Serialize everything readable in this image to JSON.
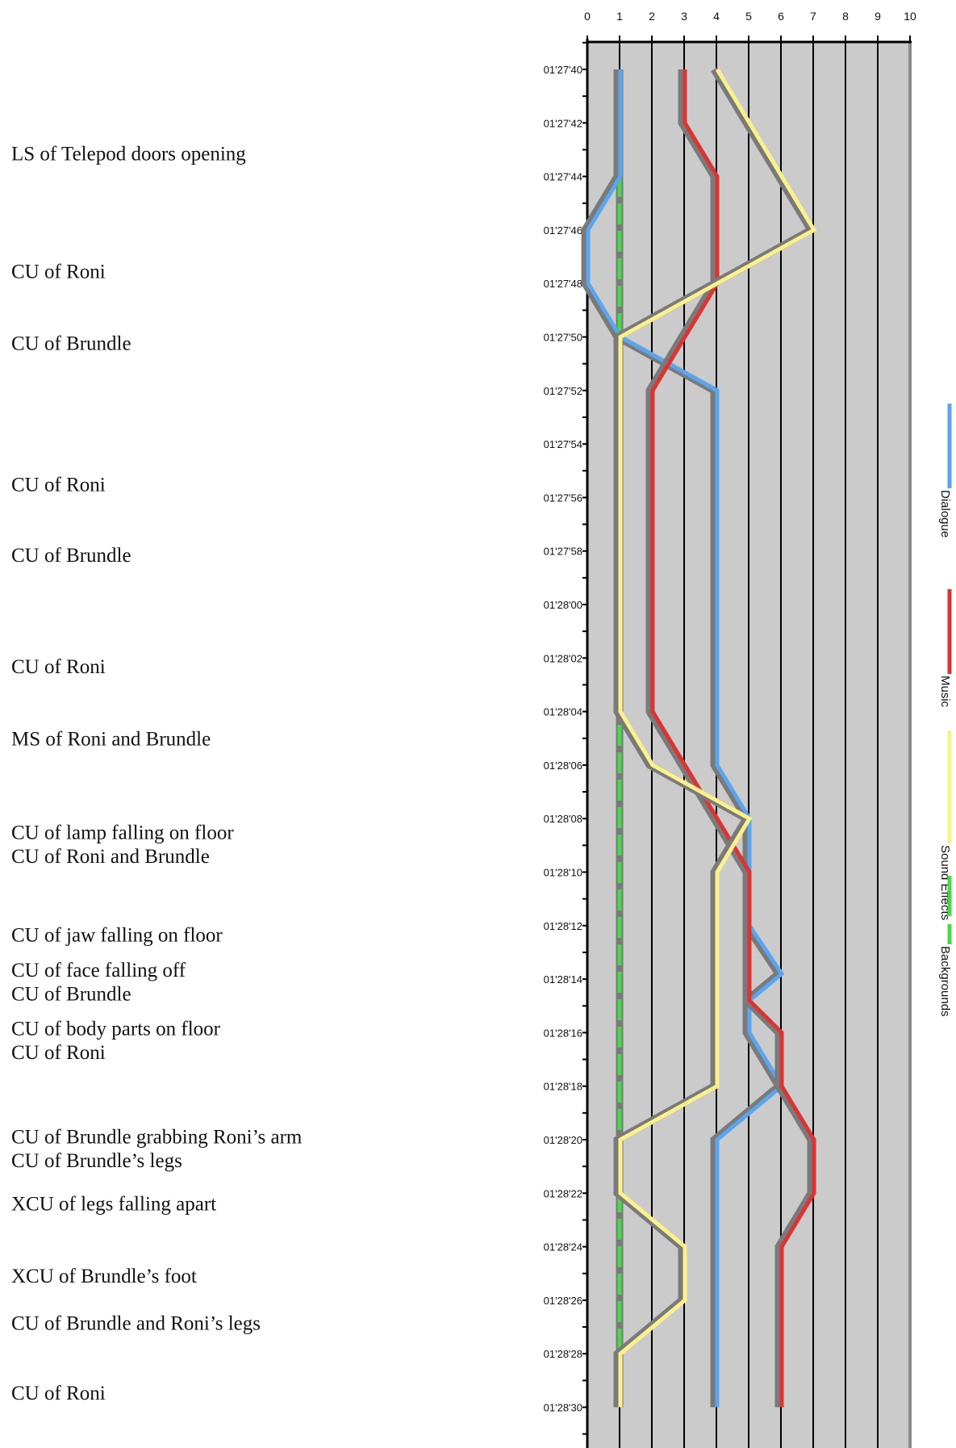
{
  "chart_data": {
    "type": "line",
    "orientation": "vertical-time",
    "xlim": [
      0,
      10
    ],
    "x_ticks": [
      "0",
      "1",
      "2",
      "3",
      "4",
      "5",
      "6",
      "7",
      "8",
      "9",
      "10"
    ],
    "time_labels": [
      "01'27'40",
      "01'27'42",
      "01'27'44",
      "01'27'46",
      "01'27'48",
      "01'27'50",
      "01'27'52",
      "01'27'54",
      "01'27'56",
      "01'27'58",
      "01'28'00",
      "01'28'02",
      "01'28'04",
      "01'28'06",
      "01'28'08",
      "01'28'10",
      "01'28'12",
      "01'28'14",
      "01'28'16",
      "01'28'18",
      "01'28'20",
      "01'28'22",
      "01'28'24",
      "01'28'26",
      "01'28'28",
      "01'28'30"
    ],
    "grid": true,
    "legend_position": "right, vertical",
    "shots": [
      {
        "lines": [
          "LS of Telepod doors opening"
        ],
        "time": 1.7
      },
      {
        "lines": [
          "CU of Roni"
        ],
        "time": 3.9
      },
      {
        "lines": [
          "CU of Brundle"
        ],
        "time": 5.24
      },
      {
        "lines": [
          "CU of Roni"
        ],
        "time": 7.88
      },
      {
        "lines": [
          "CU of Brundle"
        ],
        "time": 9.2
      },
      {
        "lines": [
          "CU of Roni"
        ],
        "time": 11.28
      },
      {
        "lines": [
          "MS of Roni and Brundle"
        ],
        "time": 12.63
      },
      {
        "lines": [
          "CU of lamp falling on floor",
          "CU of  Roni and Brundle"
        ],
        "time": 14.38
      },
      {
        "lines": [
          "CU of jaw falling on floor"
        ],
        "time": 16.3
      },
      {
        "lines": [
          "CU of face falling off",
          "CU of Brundle"
        ],
        "time": 16.95
      },
      {
        "lines": [
          "CU of body parts on floor",
          "CU of Roni"
        ],
        "time": 18.05
      },
      {
        "lines": [
          "CU of Brundle grabbing Roni’s arm",
          "CU of Brundle’s legs"
        ],
        "time": 20.07
      },
      {
        "lines": [
          "XCU of legs falling apart"
        ],
        "time": 21.32
      },
      {
        "lines": [
          "XCU of Brundle’s foot"
        ],
        "time": 22.67
      },
      {
        "lines": [
          "CU of Brundle and Roni’s legs"
        ],
        "time": 23.55
      },
      {
        "lines": [
          "CU of Roni"
        ],
        "time": 24.86
      }
    ],
    "series": [
      {
        "name": "Dialogue",
        "color": "#5aa5f0",
        "points": [
          [
            1,
            0
          ],
          [
            1,
            2
          ],
          [
            0,
            3
          ],
          [
            0,
            4
          ],
          [
            1,
            5
          ],
          [
            4,
            6
          ],
          [
            4,
            13
          ],
          [
            5,
            14
          ],
          [
            5,
            16
          ],
          [
            6,
            16.9
          ],
          [
            5,
            17.4
          ],
          [
            5,
            18
          ],
          [
            6,
            19
          ],
          [
            4,
            20
          ],
          [
            4,
            25
          ]
        ]
      },
      {
        "name": "Music",
        "color": "#dd3333",
        "points": [
          [
            3,
            0
          ],
          [
            3,
            1
          ],
          [
            4,
            2
          ],
          [
            4,
            4
          ],
          [
            3,
            5
          ],
          [
            2,
            6
          ],
          [
            2,
            12
          ],
          [
            5,
            15
          ],
          [
            5,
            17.4
          ],
          [
            6,
            18
          ],
          [
            6,
            19
          ],
          [
            7,
            20
          ],
          [
            7,
            21
          ],
          [
            6,
            22
          ],
          [
            6,
            25
          ]
        ]
      },
      {
        "name": "Sound Effects",
        "color": "#fbf18a",
        "points": [
          [
            4,
            0
          ],
          [
            5,
            1
          ],
          [
            6,
            2
          ],
          [
            7,
            3
          ],
          [
            1,
            5
          ],
          [
            1,
            12
          ],
          [
            2,
            13
          ],
          [
            5,
            14
          ],
          [
            4,
            15
          ],
          [
            4,
            19
          ],
          [
            1,
            20
          ],
          [
            1,
            21
          ],
          [
            3,
            22
          ],
          [
            3,
            23
          ],
          [
            1,
            24
          ],
          [
            1,
            25
          ]
        ]
      },
      {
        "name": "Backgrounds",
        "color": "#48d848",
        "dashed": true,
        "points": [
          [
            1,
            0
          ],
          [
            1,
            25
          ]
        ]
      }
    ]
  }
}
